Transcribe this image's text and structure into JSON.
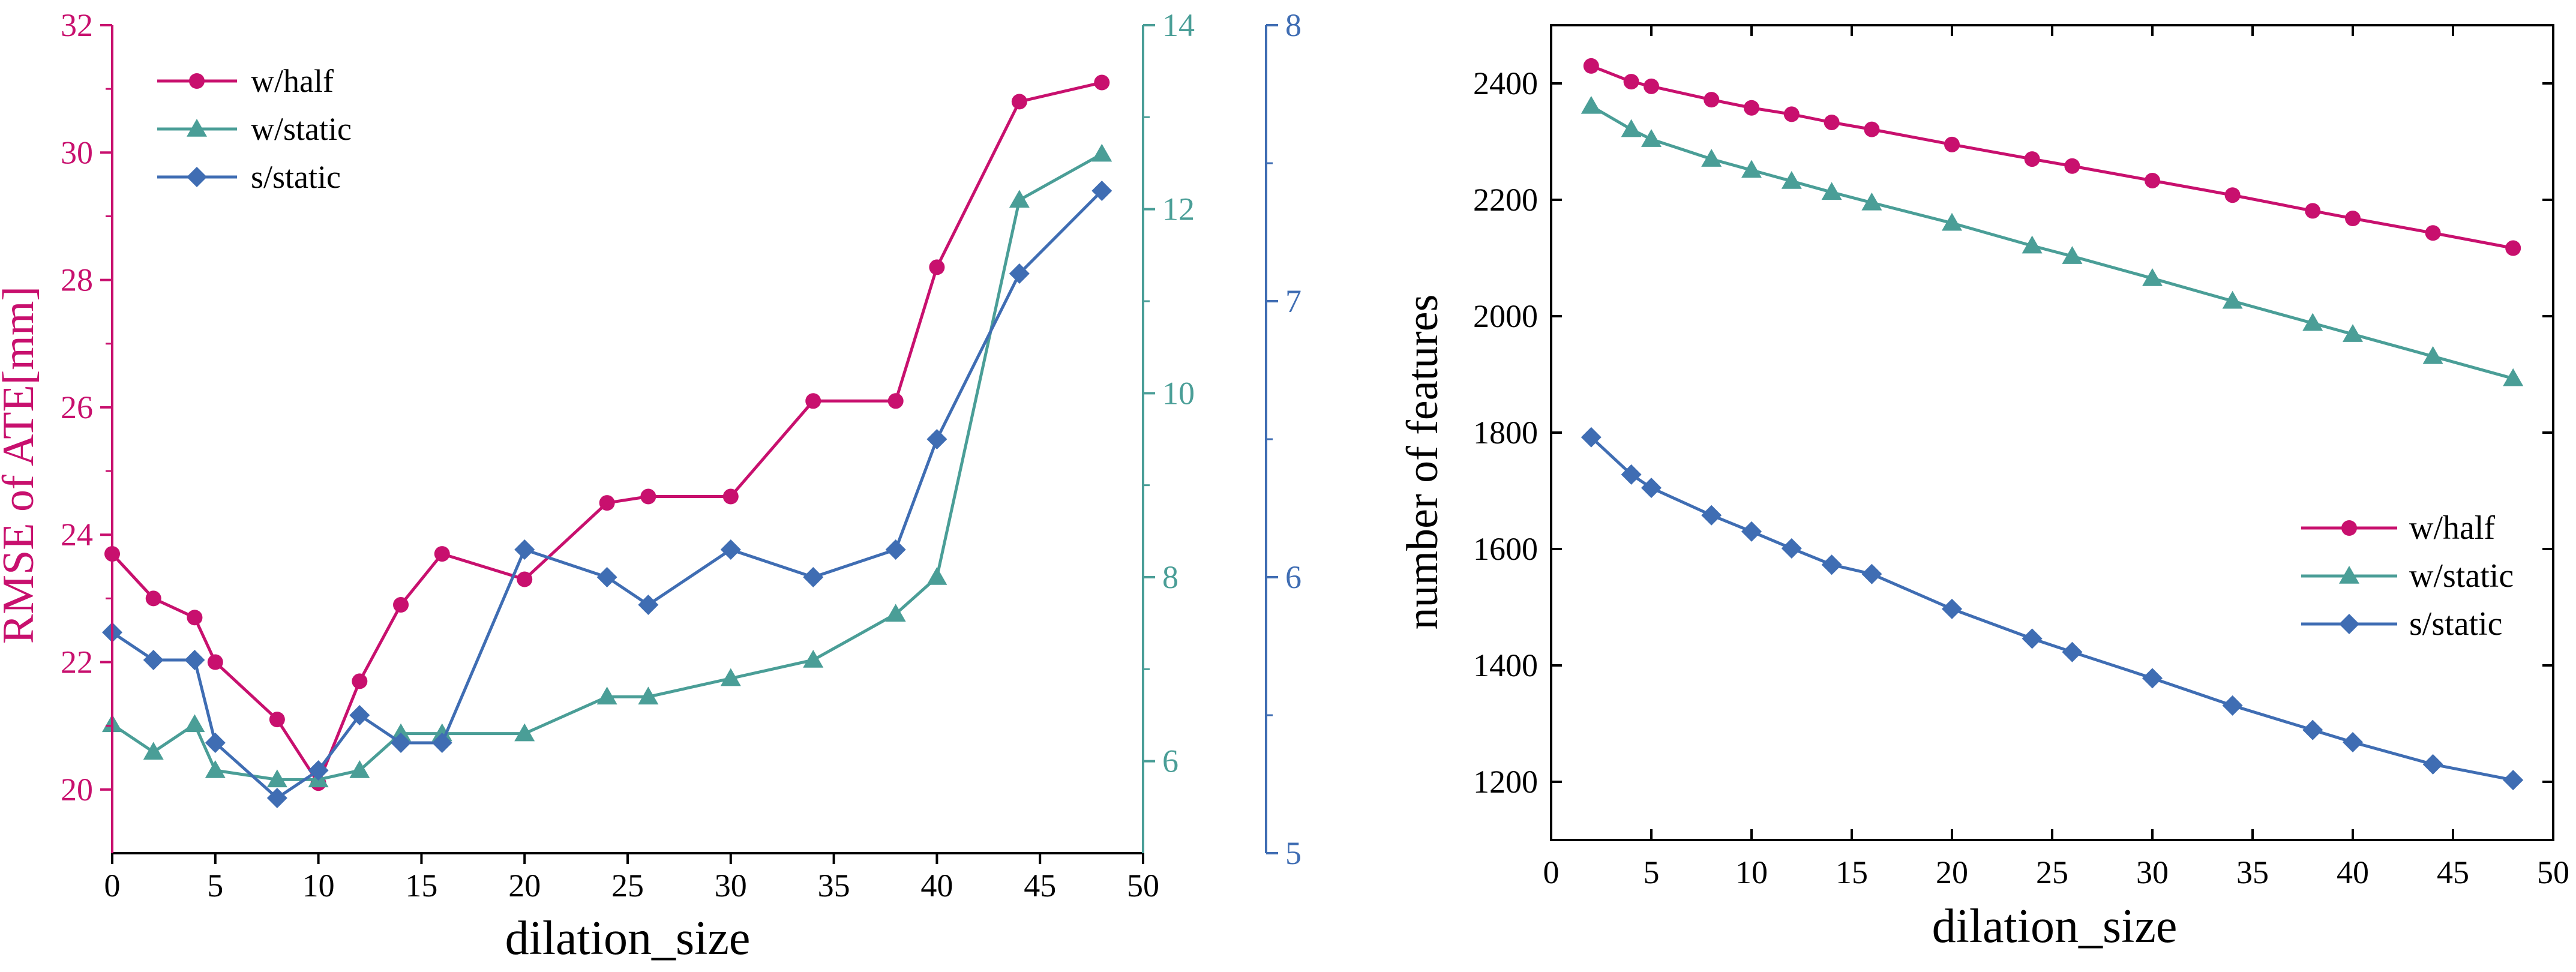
{
  "colors": {
    "w_half": "#c8106e",
    "w_static": "#4a9e97",
    "s_static": "#3f6db3",
    "axis": "#000000"
  },
  "chart_data": [
    {
      "type": "line",
      "xlabel": "dilation_size",
      "xlim": [
        0,
        50
      ],
      "xticks": [
        0,
        5,
        10,
        15,
        20,
        25,
        30,
        35,
        40,
        45,
        50
      ],
      "axes": [
        {
          "id": "left",
          "label": "RMSE of ATE[mm]",
          "ylim": [
            19,
            32
          ],
          "ticks": [
            20,
            22,
            24,
            26,
            28,
            30,
            32
          ],
          "color_key": "w_half"
        },
        {
          "id": "right1",
          "label": "",
          "ylim": [
            5,
            14
          ],
          "ticks": [
            6,
            8,
            10,
            12,
            14
          ],
          "color_key": "w_static"
        },
        {
          "id": "right2",
          "label": "",
          "ylim": [
            5,
            8
          ],
          "ticks": [
            5,
            6,
            7,
            8
          ],
          "color_key": "s_static"
        }
      ],
      "legend_position": "top-left",
      "series": [
        {
          "name": "w/half",
          "axis": "left",
          "marker": "circle",
          "color_key": "w_half",
          "x": [
            0,
            2,
            4,
            5,
            8,
            10,
            12,
            14,
            16,
            20,
            24,
            26,
            30,
            34,
            38,
            40,
            44,
            48
          ],
          "y": [
            23.7,
            23.0,
            22.7,
            22.0,
            21.1,
            20.1,
            21.7,
            22.9,
            23.7,
            23.3,
            24.5,
            24.6,
            24.6,
            26.1,
            26.1,
            28.2,
            30.8,
            31.1
          ]
        },
        {
          "name": "w/static",
          "axis": "right1",
          "marker": "triangle",
          "color_key": "w_static",
          "x": [
            0,
            2,
            4,
            5,
            8,
            10,
            12,
            14,
            16,
            20,
            24,
            26,
            30,
            34,
            38,
            40,
            44,
            48
          ],
          "y": [
            6.4,
            6.1,
            6.4,
            5.9,
            5.8,
            5.8,
            5.9,
            6.3,
            6.3,
            6.3,
            6.7,
            6.7,
            6.9,
            7.1,
            7.6,
            8.0,
            12.1,
            12.6
          ]
        },
        {
          "name": "s/static",
          "axis": "right2",
          "marker": "diamond",
          "color_key": "s_static",
          "x": [
            0,
            2,
            4,
            5,
            8,
            10,
            12,
            14,
            16,
            20,
            24,
            26,
            30,
            34,
            38,
            40,
            44,
            48
          ],
          "y": [
            5.8,
            5.7,
            5.7,
            5.4,
            5.2,
            5.3,
            5.5,
            5.4,
            5.4,
            6.1,
            6.0,
            5.9,
            6.1,
            6.0,
            6.1,
            6.5,
            7.1,
            7.4
          ]
        }
      ]
    },
    {
      "type": "line",
      "xlabel": "dilation_size",
      "ylabel": "number of features",
      "xlim": [
        0,
        50
      ],
      "ylim": [
        1100,
        2500
      ],
      "xticks": [
        0,
        5,
        10,
        15,
        20,
        25,
        30,
        35,
        40,
        45,
        50
      ],
      "yticks": [
        1200,
        1400,
        1600,
        1800,
        2000,
        2200,
        2400
      ],
      "legend_position": "center-right",
      "series": [
        {
          "name": "w/half",
          "marker": "circle",
          "color_key": "w_half",
          "x": [
            2,
            4,
            5,
            8,
            10,
            12,
            14,
            16,
            20,
            24,
            26,
            30,
            34,
            38,
            40,
            44,
            48
          ],
          "y": [
            2430,
            2403,
            2395,
            2372,
            2358,
            2347,
            2333,
            2321,
            2295,
            2270,
            2258,
            2233,
            2208,
            2181,
            2168,
            2143,
            2117
          ]
        },
        {
          "name": "w/static",
          "marker": "triangle",
          "color_key": "w_static",
          "x": [
            2,
            4,
            5,
            8,
            10,
            12,
            14,
            16,
            20,
            24,
            26,
            30,
            34,
            38,
            40,
            44,
            48
          ],
          "y": [
            2361,
            2321,
            2304,
            2270,
            2251,
            2232,
            2213,
            2195,
            2160,
            2121,
            2103,
            2065,
            2026,
            1988,
            1969,
            1931,
            1893
          ]
        },
        {
          "name": "s/static",
          "marker": "diamond",
          "color_key": "s_static",
          "x": [
            2,
            4,
            5,
            8,
            10,
            12,
            14,
            16,
            20,
            24,
            26,
            30,
            34,
            38,
            40,
            44,
            48
          ],
          "y": [
            1792,
            1728,
            1705,
            1658,
            1630,
            1601,
            1573,
            1557,
            1497,
            1446,
            1423,
            1378,
            1331,
            1289,
            1268,
            1230,
            1203
          ]
        }
      ]
    }
  ]
}
